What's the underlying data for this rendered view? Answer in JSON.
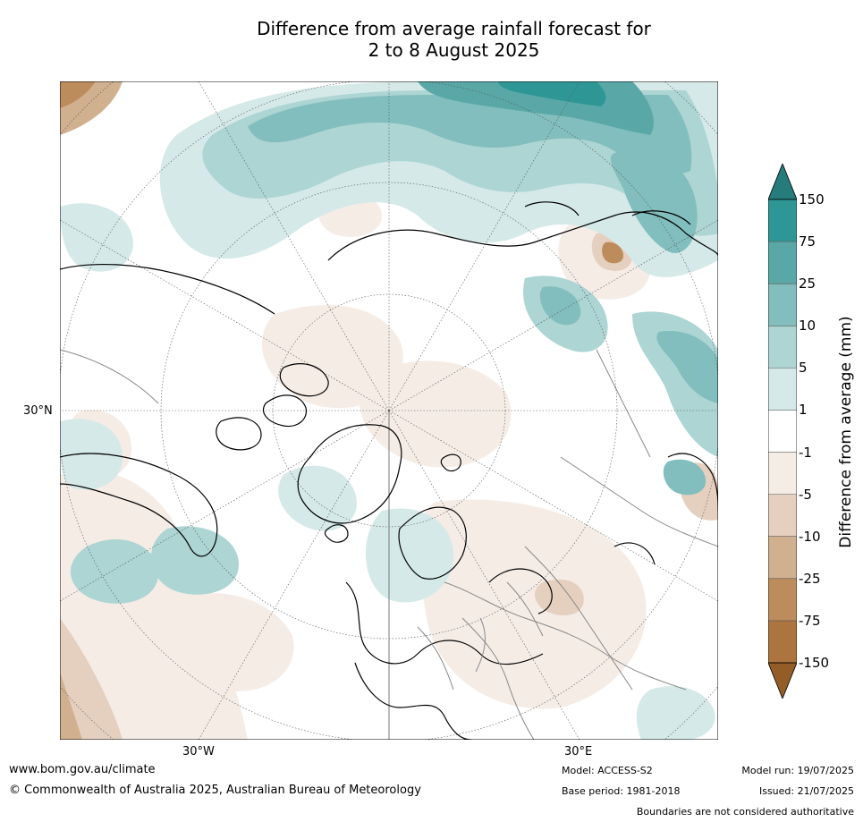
{
  "title_line1": "Difference from average rainfall forecast for",
  "title_line2": "2 to 8 August 2025",
  "map": {
    "lat_label": "30°N",
    "lon_labels": [
      "30°W",
      "30°E"
    ]
  },
  "legend": {
    "title": "Difference from average (mm)",
    "ticks": [
      "150",
      "75",
      "25",
      "10",
      "5",
      "1",
      "-1",
      "-5",
      "-10",
      "-25",
      "-75",
      "-150"
    ],
    "colors": {
      "gt150": "#267c7a",
      "75_150": "#2e9795",
      "25_75": "#59a8a7",
      "10_25": "#82bebd",
      "5_10": "#acd5d3",
      "1_5": "#d5e9e8",
      "m1_1": "#ffffff",
      "m5_m1": "#f5ece6",
      "m10_m5": "#e5d0bf",
      "m25_m10": "#d1b08f",
      "m75_m25": "#bd8c5d",
      "m150_m75": "#ac753f",
      "lt_m150": "#945d27"
    }
  },
  "footer": {
    "website": "www.bom.gov.au/climate",
    "copyright": "© Commonwealth of Australia 2025, Australian Bureau of Meteorology",
    "model": "Model: ACCESS-S2",
    "base_period": "Base period: 1981-2018",
    "model_run": "Model run: 19/07/2025",
    "issued": "Issued: 21/07/2025",
    "disclaimer": "Boundaries are not considered authoritative"
  }
}
